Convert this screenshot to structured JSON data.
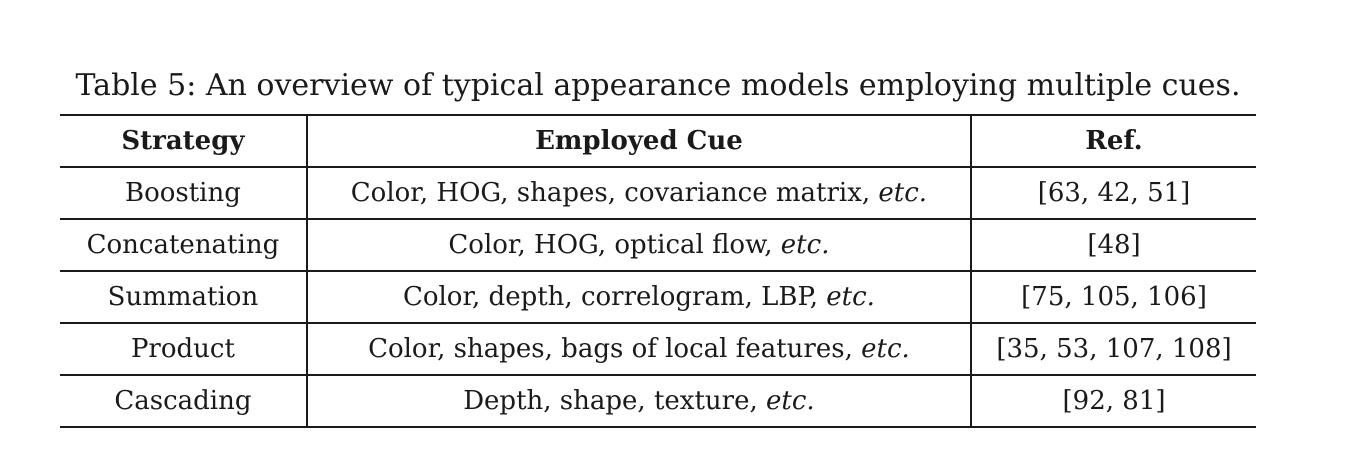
{
  "caption": "Table 5: An overview of typical appearance models employing multiple cues.",
  "table": {
    "headers": [
      "Strategy",
      "Employed Cue",
      "Ref."
    ],
    "rows": [
      {
        "strategy": "Boosting",
        "cue": "Color, HOG, shapes, covariance matrix, ",
        "cue_etc": "etc.",
        "ref": "[63, 42, 51]"
      },
      {
        "strategy": "Concatenating",
        "cue": "Color, HOG, optical flow, ",
        "cue_etc": "etc.",
        "ref": "[48]"
      },
      {
        "strategy": "Summation",
        "cue": "Color, depth, correlogram, LBP, ",
        "cue_etc": "etc.",
        "ref": "[75, 105, 106]"
      },
      {
        "strategy": "Product",
        "cue": "Color, shapes, bags of local features, ",
        "cue_etc": "etc.",
        "ref": "[35, 53, 107, 108]"
      },
      {
        "strategy": "Cascading",
        "cue": "Depth, shape, texture, ",
        "cue_etc": "etc.",
        "ref": "[92, 81]"
      }
    ]
  }
}
